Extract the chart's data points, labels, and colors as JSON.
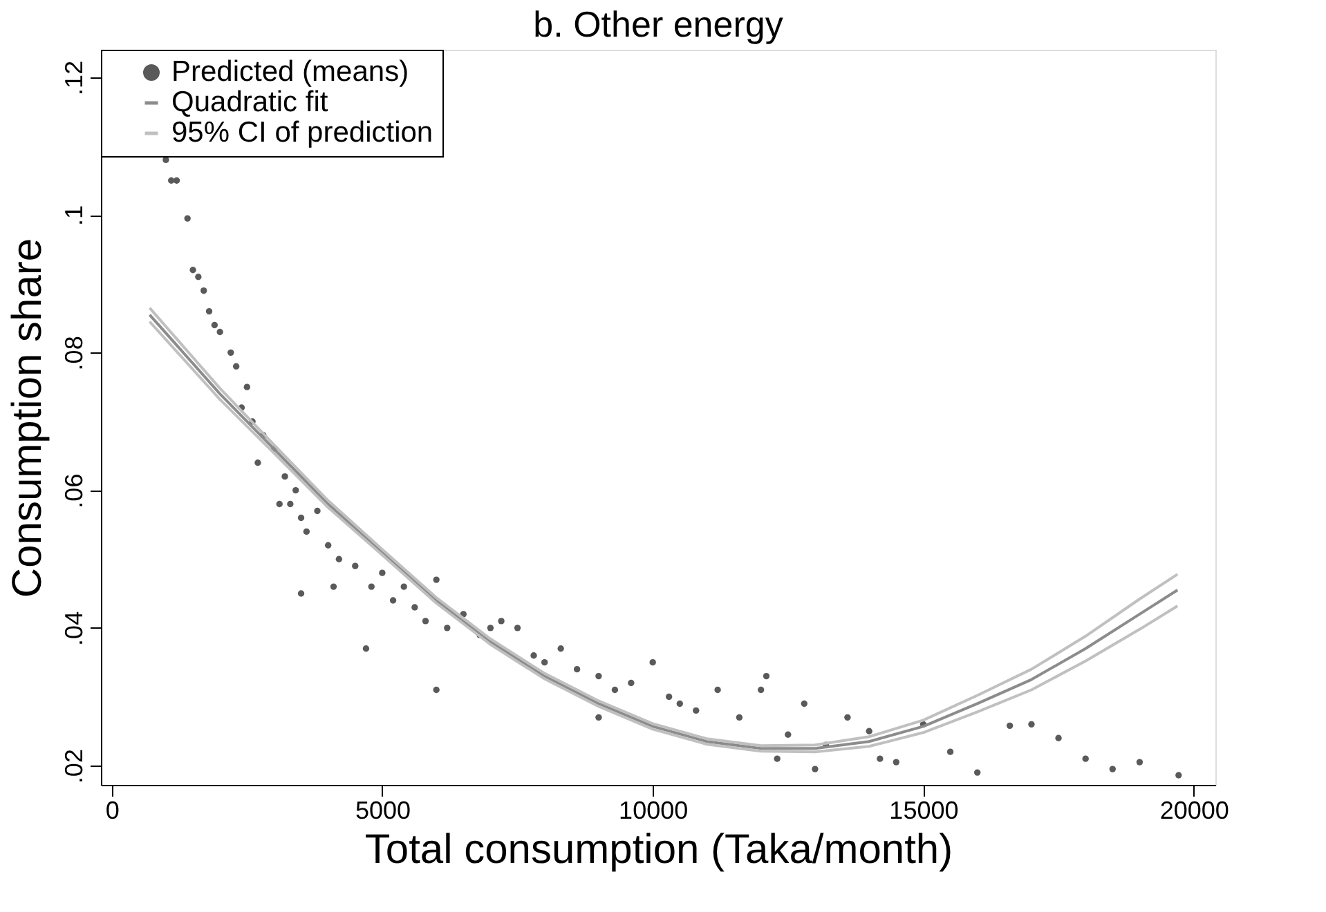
{
  "chart_data": {
    "type": "scatter",
    "title": "b. Other energy",
    "xlabel": "Total consumption (Taka/month)",
    "ylabel": "Consumption share",
    "xlim": [
      -200,
      20400
    ],
    "xticks": [
      0,
      5000,
      10000,
      15000,
      20000
    ],
    "ylim": [
      0.0172,
      0.124
    ],
    "yticks": [
      {
        "value": 0.02,
        "label": ".02"
      },
      {
        "value": 0.04,
        "label": ".04"
      },
      {
        "value": 0.06,
        "label": ".06"
      },
      {
        "value": 0.08,
        "label": ".08"
      },
      {
        "value": 0.1,
        "label": ".1"
      },
      {
        "value": 0.12,
        "label": ".12"
      }
    ],
    "grid": false,
    "legend": "top left",
    "series": [
      {
        "name": "Predicted (means)",
        "marker": "circle",
        "color": "#5a5a5a",
        "x": [
          1000,
          1100,
          1200,
          1400,
          1500,
          1600,
          1700,
          1800,
          1900,
          2000,
          2200,
          2300,
          2400,
          2500,
          2600,
          2700,
          2800,
          3000,
          3100,
          3200,
          3300,
          3400,
          3500,
          3500,
          3600,
          3800,
          4000,
          4100,
          4200,
          4500,
          4700,
          4800,
          5000,
          5200,
          5400,
          5600,
          5800,
          6000,
          6000,
          6200,
          6500,
          6800,
          7000,
          7200,
          7500,
          7800,
          8000,
          8300,
          8600,
          9000,
          9000,
          9300,
          9600,
          10000,
          10300,
          10500,
          10800,
          11200,
          11600,
          12000,
          12100,
          12300,
          12500,
          12800,
          13000,
          13200,
          13600,
          14000,
          14200,
          14500,
          15000,
          15500,
          16000,
          16600,
          17000,
          17500,
          18000,
          18500,
          19000,
          19720
        ],
        "values": [
          0.108,
          0.105,
          0.105,
          0.0995,
          0.092,
          0.091,
          0.089,
          0.086,
          0.084,
          0.083,
          0.08,
          0.078,
          0.072,
          0.075,
          0.07,
          0.064,
          0.068,
          0.066,
          0.058,
          0.062,
          0.058,
          0.06,
          0.056,
          0.045,
          0.054,
          0.057,
          0.052,
          0.046,
          0.05,
          0.049,
          0.037,
          0.046,
          0.048,
          0.044,
          0.046,
          0.043,
          0.041,
          0.047,
          0.031,
          0.04,
          0.042,
          0.039,
          0.04,
          0.041,
          0.04,
          0.036,
          0.035,
          0.037,
          0.034,
          0.033,
          0.027,
          0.031,
          0.032,
          0.035,
          0.03,
          0.029,
          0.028,
          0.031,
          0.027,
          0.031,
          0.033,
          0.021,
          0.0245,
          0.029,
          0.0195,
          0.023,
          0.027,
          0.025,
          0.021,
          0.0205,
          0.026,
          0.022,
          0.019,
          0.0258,
          0.026,
          0.024,
          0.021,
          0.0195,
          0.0205,
          0.0186
        ]
      },
      {
        "name": "Quadratic fit",
        "type": "line",
        "line_style": "solid",
        "color": "#8c8c8c",
        "x": [
          700,
          2000,
          3000,
          4000,
          5000,
          6000,
          7000,
          8000,
          9000,
          10000,
          11000,
          12000,
          13000,
          14000,
          15000,
          16000,
          17000,
          18000,
          19000,
          19700
        ],
        "values": [
          0.0855,
          0.074,
          0.066,
          0.058,
          0.051,
          0.044,
          0.038,
          0.033,
          0.029,
          0.0257,
          0.0235,
          0.0225,
          0.0225,
          0.0235,
          0.0257,
          0.029,
          0.0325,
          0.037,
          0.042,
          0.0455
        ]
      },
      {
        "name": "95% CI of prediction",
        "type": "line",
        "line_style": "solid",
        "color": "#c0c0c0",
        "x": [
          700,
          2000,
          3000,
          4000,
          5000,
          6000,
          7000,
          8000,
          9000,
          10000,
          11000,
          12000,
          13000,
          14000,
          15000,
          16000,
          17000,
          18000,
          19000,
          19700
        ],
        "values": [
          0.0865,
          0.0748,
          0.0666,
          0.0585,
          0.0514,
          0.0444,
          0.0384,
          0.0334,
          0.0294,
          0.0261,
          0.0239,
          0.0229,
          0.023,
          0.0242,
          0.0266,
          0.0302,
          0.034,
          0.0388,
          0.0442,
          0.0478
        ]
      },
      {
        "type": "line",
        "line_style": "solid",
        "color": "#c0c0c0",
        "x": [
          700,
          2000,
          3000,
          4000,
          5000,
          6000,
          7000,
          8000,
          9000,
          10000,
          11000,
          12000,
          13000,
          14000,
          15000,
          16000,
          17000,
          18000,
          19000,
          19700
        ],
        "values": [
          0.0845,
          0.0732,
          0.0654,
          0.0575,
          0.0506,
          0.0436,
          0.0376,
          0.0326,
          0.0286,
          0.0253,
          0.0231,
          0.0221,
          0.022,
          0.0228,
          0.0248,
          0.0278,
          0.031,
          0.0352,
          0.0398,
          0.0432
        ]
      }
    ]
  }
}
